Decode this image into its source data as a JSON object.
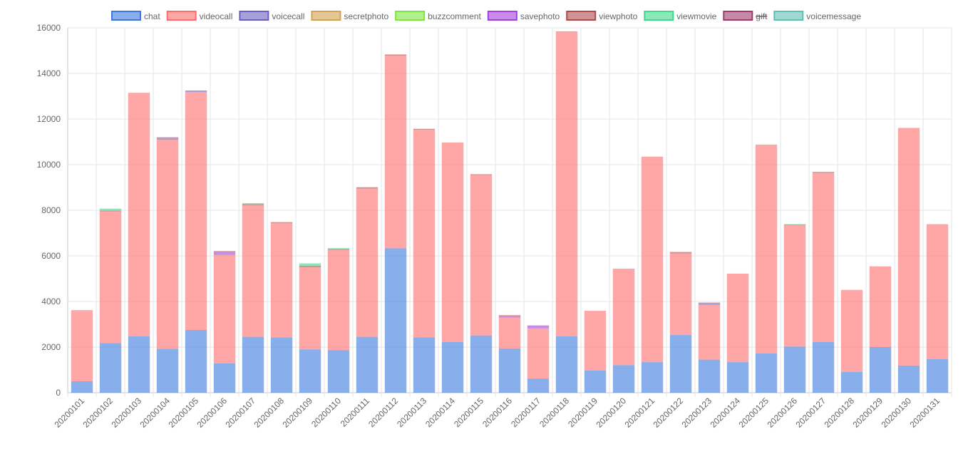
{
  "chart_data": {
    "type": "bar",
    "stacked": true,
    "categories": [
      "20200101",
      "20200102",
      "20200103",
      "20200104",
      "20200105",
      "20200106",
      "20200107",
      "20200108",
      "20200109",
      "20200110",
      "20200111",
      "20200112",
      "20200113",
      "20200114",
      "20200115",
      "20200116",
      "20200117",
      "20200118",
      "20200119",
      "20200120",
      "20200121",
      "20200122",
      "20200123",
      "20200124",
      "20200125",
      "20200126",
      "20200127",
      "20200128",
      "20200129",
      "20200130",
      "20200131"
    ],
    "ylim": [
      0,
      16000
    ],
    "yticks": [
      0,
      2000,
      4000,
      6000,
      8000,
      10000,
      12000,
      14000,
      16000
    ],
    "grid": true,
    "legend_position": "top",
    "series": [
      {
        "name": "chat",
        "color": "#3a78e0",
        "fill": "rgba(58,120,224,0.6)",
        "hidden": false,
        "values": [
          500,
          2170,
          2480,
          1920,
          2750,
          1290,
          2450,
          2420,
          1900,
          1870,
          2450,
          6330,
          2430,
          2220,
          2510,
          1940,
          620,
          2470,
          980,
          1210,
          1340,
          2530,
          1450,
          1340,
          1720,
          2020,
          2230,
          910,
          2000,
          1190,
          1470
        ]
      },
      {
        "name": "videocall",
        "color": "#ff6b6b",
        "fill": "rgba(255,107,107,0.6)",
        "hidden": false,
        "values": [
          3120,
          5780,
          10670,
          9170,
          10430,
          4750,
          5760,
          5010,
          3600,
          4390,
          6500,
          8450,
          9100,
          8750,
          7030,
          1350,
          2200,
          13350,
          2610,
          4230,
          9010,
          3580,
          2400,
          3880,
          9160,
          5320,
          7410,
          3600,
          3540,
          10420,
          5920
        ]
      },
      {
        "name": "voicecall",
        "color": "#6a5fc1",
        "fill": "rgba(106,95,193,0.6)",
        "hidden": false,
        "values": [
          0,
          0,
          0,
          60,
          40,
          40,
          0,
          0,
          0,
          0,
          0,
          0,
          0,
          0,
          0,
          0,
          0,
          0,
          0,
          0,
          0,
          0,
          60,
          0,
          0,
          0,
          0,
          0,
          0,
          0,
          0
        ]
      },
      {
        "name": "secretphoto",
        "color": "#d4a150",
        "fill": "rgba(212,161,80,0.6)",
        "hidden": false,
        "values": [
          0,
          0,
          0,
          0,
          0,
          0,
          0,
          0,
          0,
          0,
          0,
          0,
          0,
          0,
          0,
          0,
          0,
          0,
          0,
          0,
          0,
          0,
          0,
          0,
          0,
          0,
          0,
          0,
          0,
          0,
          0
        ]
      },
      {
        "name": "buzzcomment",
        "color": "#7ee640",
        "fill": "rgba(126,230,64,0.6)",
        "hidden": false,
        "values": [
          0,
          0,
          0,
          0,
          0,
          0,
          0,
          0,
          0,
          0,
          0,
          0,
          0,
          0,
          0,
          0,
          0,
          0,
          0,
          0,
          0,
          0,
          0,
          0,
          0,
          0,
          0,
          0,
          0,
          0,
          0
        ]
      },
      {
        "name": "savephoto",
        "color": "#a43ee0",
        "fill": "rgba(164,62,224,0.6)",
        "hidden": false,
        "values": [
          0,
          0,
          0,
          0,
          0,
          90,
          0,
          0,
          0,
          0,
          0,
          0,
          0,
          0,
          0,
          50,
          130,
          0,
          0,
          0,
          0,
          0,
          0,
          0,
          0,
          0,
          0,
          0,
          0,
          0,
          0
        ]
      },
      {
        "name": "viewphoto",
        "color": "#b04a4a",
        "fill": "rgba(176,74,74,0.6)",
        "hidden": false,
        "values": [
          0,
          30,
          0,
          50,
          30,
          40,
          60,
          50,
          70,
          40,
          60,
          50,
          40,
          0,
          40,
          60,
          0,
          20,
          0,
          0,
          0,
          60,
          40,
          0,
          0,
          30,
          40,
          0,
          0,
          0,
          0
        ]
      },
      {
        "name": "viewmovie",
        "color": "#3ed98a",
        "fill": "rgba(62,217,138,0.6)",
        "hidden": false,
        "values": [
          0,
          90,
          0,
          0,
          0,
          0,
          40,
          0,
          100,
          40,
          0,
          0,
          0,
          0,
          0,
          0,
          0,
          0,
          0,
          0,
          0,
          0,
          0,
          0,
          0,
          20,
          0,
          0,
          0,
          0,
          0
        ]
      },
      {
        "name": "gift",
        "color": "#a03a6e",
        "fill": "rgba(160,58,110,0.6)",
        "hidden": true,
        "values": [
          0,
          0,
          0,
          0,
          0,
          0,
          0,
          0,
          0,
          0,
          0,
          0,
          0,
          0,
          0,
          0,
          0,
          0,
          0,
          0,
          0,
          0,
          0,
          0,
          0,
          0,
          0,
          0,
          0,
          0,
          0
        ]
      },
      {
        "name": "voicemessage",
        "color": "#5fbfb5",
        "fill": "rgba(95,191,181,0.6)",
        "hidden": false,
        "values": [
          0,
          0,
          0,
          0,
          0,
          0,
          0,
          0,
          0,
          0,
          0,
          0,
          0,
          0,
          0,
          0,
          0,
          0,
          0,
          0,
          0,
          0,
          0,
          0,
          0,
          0,
          0,
          0,
          0,
          0,
          0
        ]
      }
    ]
  }
}
